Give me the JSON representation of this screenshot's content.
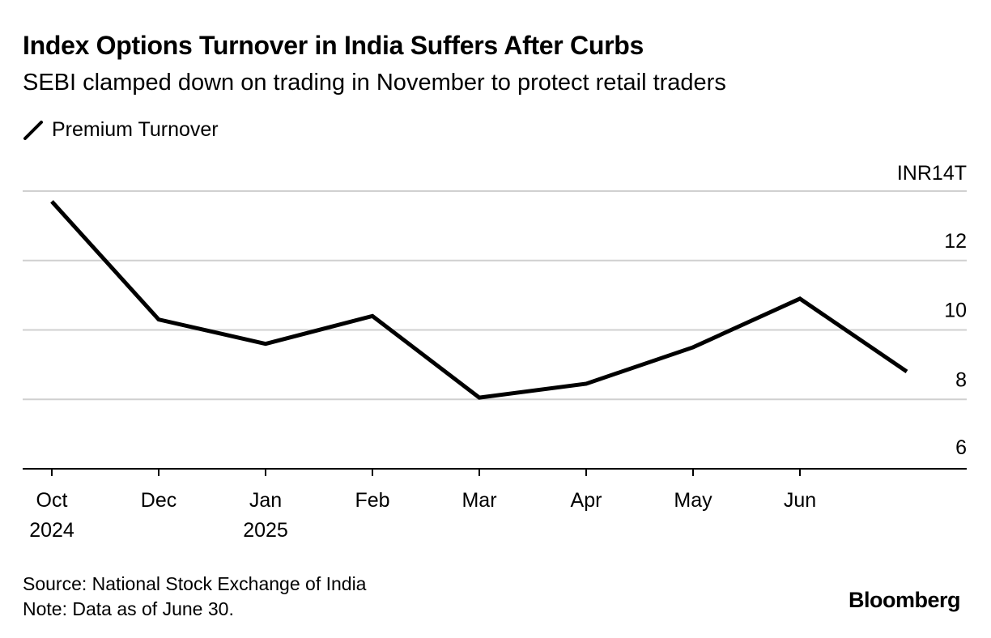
{
  "header": {
    "title": "Index Options Turnover in India Suffers After Curbs",
    "subtitle": "SEBI clamped down on trading in November to protect retail traders"
  },
  "legend": {
    "label": "Premium Turnover",
    "icon": "line-legend-icon"
  },
  "footer": {
    "source": "Source: National Stock Exchange of India",
    "note": "Note: Data as of June 30.",
    "brand": "Bloomberg"
  },
  "chart_data": {
    "type": "line",
    "title": "Index Options Turnover in India Suffers After Curbs",
    "subtitle": "SEBI clamped down on trading in November to protect retail traders",
    "xlabel": "",
    "ylabel": "",
    "y_axis_side": "right",
    "ylim": [
      6,
      14
    ],
    "yticks": [
      6,
      8,
      10,
      12,
      14
    ],
    "ytick_labels": [
      "6",
      "8",
      "10",
      "12",
      "INR14T"
    ],
    "grid": true,
    "legend_position": "top-left",
    "x_ticks": [
      {
        "x": 0,
        "label": "Oct",
        "sublabel": "2024"
      },
      {
        "x": 2,
        "label": "Dec",
        "sublabel": ""
      },
      {
        "x": 4,
        "label": "Jan",
        "sublabel": "2025"
      },
      {
        "x": 6,
        "label": "Feb",
        "sublabel": ""
      },
      {
        "x": 8,
        "label": "Mar",
        "sublabel": ""
      },
      {
        "x": 10,
        "label": "Apr",
        "sublabel": ""
      },
      {
        "x": 12,
        "label": "May",
        "sublabel": ""
      },
      {
        "x": 14,
        "label": "Jun",
        "sublabel": ""
      }
    ],
    "series": [
      {
        "name": "Premium Turnover",
        "color": "#000000",
        "x": [
          0,
          2,
          4,
          6,
          8,
          10,
          12,
          14,
          16
        ],
        "values": [
          13.7,
          10.3,
          9.6,
          10.4,
          8.05,
          8.45,
          9.5,
          10.9,
          8.8
        ]
      }
    ]
  }
}
